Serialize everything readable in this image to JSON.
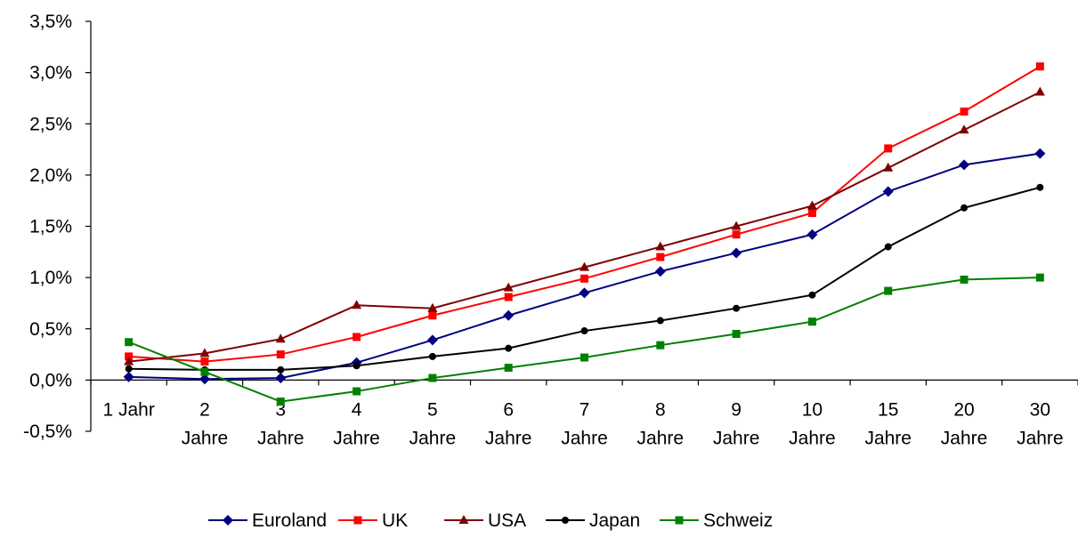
{
  "chart_data": {
    "type": "line",
    "categories": [
      [
        "1 Jahr",
        ""
      ],
      [
        "2",
        "Jahre"
      ],
      [
        "3",
        "Jahre"
      ],
      [
        "4",
        "Jahre"
      ],
      [
        "5",
        "Jahre"
      ],
      [
        "6",
        "Jahre"
      ],
      [
        "7",
        "Jahre"
      ],
      [
        "8",
        "Jahre"
      ],
      [
        "9",
        "Jahre"
      ],
      [
        "10",
        "Jahre"
      ],
      [
        "15",
        "Jahre"
      ],
      [
        "20",
        "Jahre"
      ],
      [
        "30",
        "Jahre"
      ]
    ],
    "ylim": [
      -0.5,
      3.5
    ],
    "ytick_values": [
      -0.5,
      0.0,
      0.5,
      1.0,
      1.5,
      2.0,
      2.5,
      3.0,
      3.5
    ],
    "ytick_labels": [
      "-0,5%",
      "0,0%",
      "0,5%",
      "1,0%",
      "1,5%",
      "2,0%",
      "2,5%",
      "3,0%",
      "3,5%"
    ],
    "grid": false,
    "legend_position": "bottom",
    "series": [
      {
        "name": "Euroland",
        "color": "#000080",
        "marker": "diamond",
        "values": [
          0.03,
          0.01,
          0.02,
          0.17,
          0.39,
          0.63,
          0.85,
          1.06,
          1.24,
          1.42,
          1.84,
          2.1,
          2.21
        ]
      },
      {
        "name": "UK",
        "color": "#ff0000",
        "marker": "square",
        "values": [
          0.23,
          0.18,
          0.25,
          0.42,
          0.63,
          0.81,
          0.99,
          1.2,
          1.42,
          1.63,
          2.26,
          2.62,
          3.06
        ]
      },
      {
        "name": "USA",
        "color": "#800000",
        "marker": "triangle",
        "values": [
          0.18,
          0.26,
          0.4,
          0.73,
          0.7,
          0.9,
          1.1,
          1.3,
          1.5,
          1.7,
          2.07,
          2.44,
          2.81
        ]
      },
      {
        "name": "Japan",
        "color": "#000000",
        "marker": "circle",
        "values": [
          0.11,
          0.1,
          0.1,
          0.14,
          0.23,
          0.31,
          0.48,
          0.58,
          0.7,
          0.83,
          1.3,
          1.68,
          1.88
        ]
      },
      {
        "name": "Schweiz",
        "color": "#008000",
        "marker": "square",
        "values": [
          0.37,
          0.08,
          -0.21,
          -0.11,
          0.02,
          0.12,
          0.22,
          0.34,
          0.45,
          0.57,
          0.87,
          0.98,
          1.0
        ]
      }
    ]
  }
}
